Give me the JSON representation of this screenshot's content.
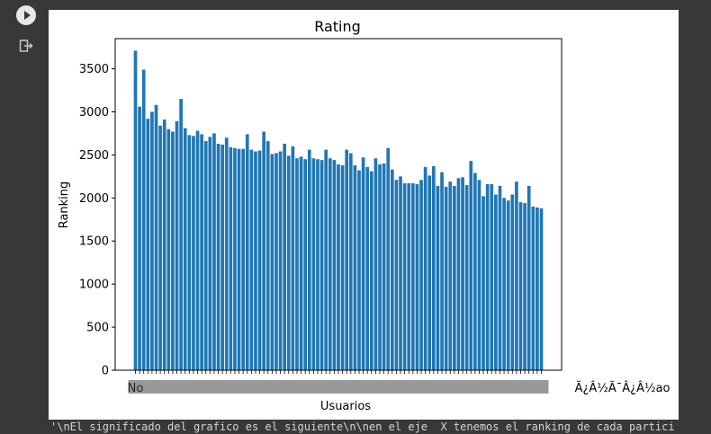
{
  "cell": {
    "run_button_icon": "play-icon",
    "output_icon": "output-redirect-icon",
    "text_output": "'\\nEl significado del grafico es el siguiente\\n\\nen el eje  X tenemos el ranking de cada partici"
  },
  "chart_data": {
    "type": "bar",
    "title": "Rating",
    "xlabel": "Usuarios",
    "ylabel": "Ranking",
    "ylim": [
      0,
      3850
    ],
    "yticks": [
      0,
      500,
      1000,
      1500,
      2000,
      2500,
      3000,
      3500
    ],
    "bar_color": "#1f77b4",
    "x_tick_first": "No",
    "x_tick_last": "Ã¿Â½Ã¯Â¿Â½ao",
    "values": [
      3710,
      3060,
      3490,
      2920,
      3000,
      3080,
      2840,
      2910,
      2800,
      2770,
      2890,
      3150,
      2810,
      2730,
      2720,
      2780,
      2740,
      2660,
      2710,
      2750,
      2630,
      2620,
      2700,
      2590,
      2580,
      2570,
      2570,
      2740,
      2560,
      2540,
      2550,
      2770,
      2660,
      2510,
      2520,
      2540,
      2630,
      2490,
      2600,
      2460,
      2480,
      2450,
      2560,
      2460,
      2450,
      2440,
      2560,
      2460,
      2440,
      2390,
      2380,
      2560,
      2520,
      2380,
      2320,
      2470,
      2360,
      2310,
      2460,
      2390,
      2400,
      2580,
      2330,
      2210,
      2250,
      2170,
      2170,
      2170,
      2160,
      2210,
      2360,
      2260,
      2370,
      2140,
      2300,
      2130,
      2190,
      2140,
      2230,
      2240,
      2150,
      2430,
      2290,
      2210,
      2020,
      2160,
      2160,
      2040,
      2140,
      2000,
      1970,
      2040,
      2190,
      1950,
      1940,
      2140,
      1900,
      1890,
      1880
    ]
  }
}
